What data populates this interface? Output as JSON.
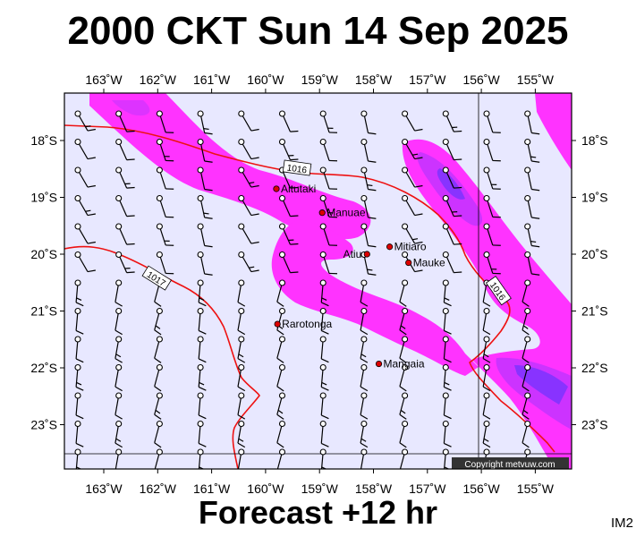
{
  "title": "2000 CKT Sun 14 Sep 2025",
  "subtitle": "Forecast +12 hr",
  "product_code": "IM2",
  "copyright": "Copyright metvuw.com",
  "colors": {
    "background": "#e8e8ff",
    "precip_light": "#ff33ff",
    "precip_mid": "#cc33ff",
    "precip_heavy": "#8833ff",
    "isobar": "#ee1111",
    "grid": "#000000",
    "place_marker": "#dd0000"
  },
  "longitude_labels": [
    "163˚W",
    "162˚W",
    "161˚W",
    "160˚W",
    "159˚W",
    "158˚W",
    "157˚W",
    "156˚W",
    "155˚W"
  ],
  "latitude_labels": [
    "18˚S",
    "19˚S",
    "20˚S",
    "21˚S",
    "22˚S",
    "23˚S"
  ],
  "isobars": [
    {
      "label": "1016",
      "value": 1016
    },
    {
      "label": "1017",
      "value": 1017
    },
    {
      "label": "1016",
      "value": 1016
    }
  ],
  "places": [
    {
      "name": "Aitutaki",
      "lon": -159.8,
      "lat": -18.85
    },
    {
      "name": "Manuae",
      "lon": -158.95,
      "lat": -19.27
    },
    {
      "name": "Mitiaro",
      "lon": -157.7,
      "lat": -19.87
    },
    {
      "name": "Atiu",
      "lon": -158.12,
      "lat": -20.0
    },
    {
      "name": "Mauke",
      "lon": -157.35,
      "lat": -20.15
    },
    {
      "name": "Rarotonga",
      "lon": -159.78,
      "lat": -21.23
    },
    {
      "name": "Mangaia",
      "lon": -157.9,
      "lat": -21.93
    }
  ]
}
